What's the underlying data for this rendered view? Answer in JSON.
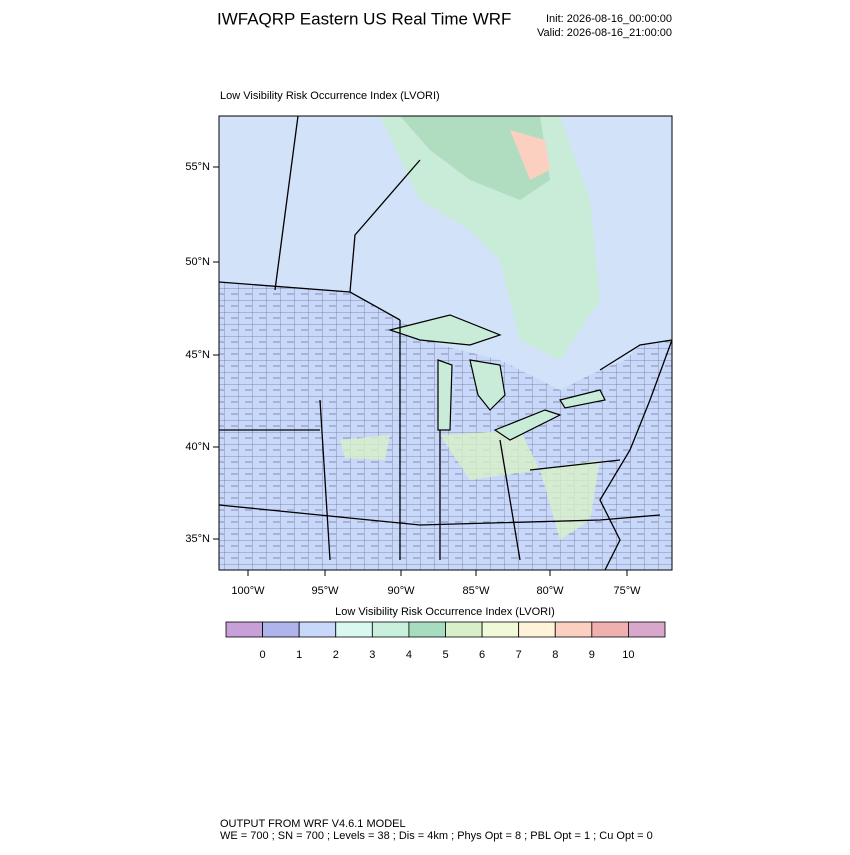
{
  "header": {
    "title": "IWFAQRP Eastern US Real Time WRF",
    "init": "Init: 2026-08-16_00:00:00",
    "valid": "Valid: 2026-08-16_21:00:00"
  },
  "map": {
    "subtitle": "Low Visibility Risk Occurrence Index   (LVORI)",
    "lat_labels": [
      "55°N",
      "50°N",
      "45°N",
      "40°N",
      "35°N"
    ],
    "lon_labels": [
      "100°W",
      "95°W",
      "90°W",
      "85°W",
      "80°W",
      "75°W"
    ]
  },
  "colorbar": {
    "label": "Low Visibility Risk Occurrence Index  (LVORI)",
    "colors": [
      "#c8a0d8",
      "#b0b4ec",
      "#c8d8fa",
      "#d8f8f0",
      "#c8f0dc",
      "#a8dcc0",
      "#d8f0c8",
      "#f0fad8",
      "#fff4d8",
      "#fcd0c0",
      "#f0b0b0",
      "#d8a8cc"
    ],
    "ticks": [
      0,
      1,
      2,
      3,
      4,
      5,
      6,
      7,
      8,
      9,
      10
    ]
  },
  "footer": {
    "line1": "OUTPUT FROM WRF V4.6.1 MODEL",
    "line2": "WE = 700 ; SN = 700 ; Levels = 38 ; Dis = 4km ; Phys Opt = 8 ; PBL Opt = 1 ; Cu Opt = 0"
  }
}
